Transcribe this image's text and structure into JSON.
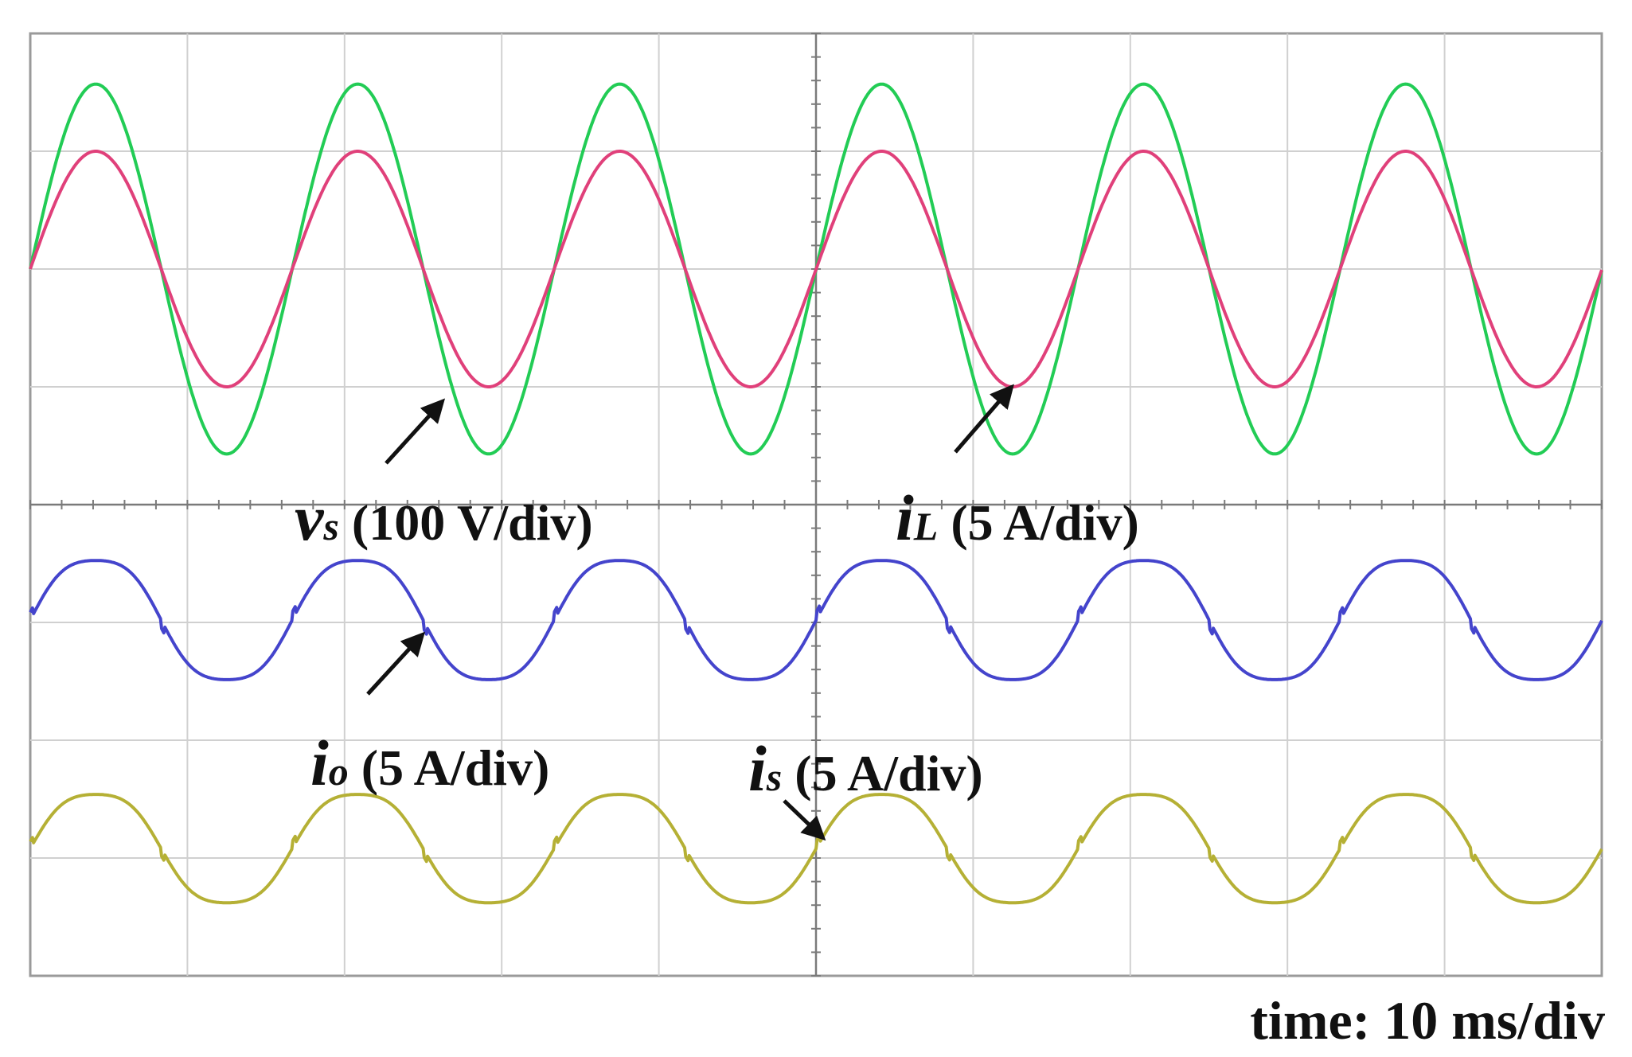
{
  "chart_data": {
    "type": "line",
    "title": "",
    "grid": true,
    "divisions": {
      "x": 10,
      "y": 8
    },
    "time_per_div_ms": 10,
    "x_range_ms": [
      0,
      100
    ],
    "series": [
      {
        "name": "vs",
        "label_symbol": "v",
        "label_subscript": "s",
        "label_scale": "(100 V/div)",
        "color": "#22cc55",
        "shape": "sine",
        "offset_div": 2.0,
        "amplitude_div": 1.57,
        "period_ms": 16.67,
        "phase_ms": 0
      },
      {
        "name": "iL",
        "label_symbol": "i",
        "label_subscript": "L",
        "label_scale": "(5 A/div)",
        "color": "#e0407a",
        "shape": "sine",
        "offset_div": 2.0,
        "amplitude_div": 1.0,
        "period_ms": 16.67,
        "phase_ms": 0
      },
      {
        "name": "io",
        "label_symbol": "i",
        "label_subscript": "o",
        "label_scale": "(5 A/div)",
        "color": "#4444cc",
        "shape": "distorted-sine",
        "offset_div": 4.98,
        "amplitude_div": 0.55,
        "period_ms": 16.67,
        "phase_ms": 0
      },
      {
        "name": "is",
        "label_symbol": "i",
        "label_subscript": "s",
        "label_scale": "(5 A/div)",
        "color": "#b5b035",
        "shape": "distorted-sine",
        "offset_div": 6.92,
        "amplitude_div": 0.5,
        "period_ms": 16.67,
        "phase_ms": 0
      }
    ],
    "xlabel": "time: 10 ms/div"
  }
}
